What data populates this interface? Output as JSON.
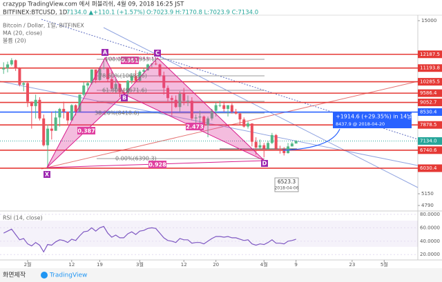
{
  "header": {
    "line1": "crazypp TradingView.com 에서 퍼블리쉬, 4월 09, 2018 16:25 JST",
    "symbol": "BITFINEX:BTCUSD, 1D",
    "change": "7134.0 ▲+110.1 (+1.57%)",
    "ohlc": "O:7023.9 H:7170.8 L:7023.9 C:7134.0"
  },
  "chart_data": {
    "type": "candlestick",
    "legend": [
      "Bitcoin / Dollar, 1일, BITFINEX",
      "MA (20, close)",
      "볼륨 (20)"
    ],
    "x": [
      26,
      27,
      28,
      29,
      30,
      31,
      32,
      33,
      34,
      35,
      36,
      37,
      38,
      39,
      40,
      41,
      42,
      43,
      44,
      45,
      46,
      47,
      48,
      49,
      50,
      51,
      52,
      53,
      54,
      55,
      56,
      57,
      58,
      59,
      60,
      61,
      62,
      63,
      64,
      65,
      66,
      67,
      68,
      69,
      70,
      71,
      72,
      73,
      74,
      75,
      76,
      77,
      78,
      79,
      80,
      81,
      82,
      83,
      84,
      85,
      86,
      87,
      88,
      89,
      90,
      91,
      92,
      93,
      94,
      95,
      96,
      97,
      98,
      99
    ],
    "open": [
      11100,
      11200,
      11450,
      11750,
      11200,
      10100,
      10200,
      9100,
      8850,
      9200,
      8200,
      6950,
      7700,
      7600,
      8250,
      8700,
      8550,
      8100,
      8900,
      8550,
      9500,
      10050,
      10200,
      11100,
      10400,
      11150,
      11200,
      10450,
      9850,
      10150,
      9650,
      9600,
      10350,
      10650,
      10350,
      10950,
      11050,
      11450,
      11500,
      11450,
      10700,
      9900,
      9300,
      9200,
      8800,
      9550,
      9150,
      9150,
      8200,
      8250,
      8300,
      7850,
      8200,
      8600,
      8900,
      8900,
      8700,
      8900,
      8550,
      8450,
      8150,
      7800,
      7950,
      7100,
      6850,
      6950,
      6800,
      7050,
      7400,
      6800,
      6780,
      6620,
      6900,
      7023.9
    ],
    "high": [
      11600,
      11650,
      11900,
      11800,
      11250,
      10300,
      10250,
      9100,
      9500,
      9350,
      8400,
      7900,
      8550,
      8600,
      8750,
      9100,
      8550,
      8950,
      8950,
      9500,
      10250,
      10300,
      11100,
      11100,
      11300,
      11800,
      11250,
      10950,
      10450,
      10200,
      9900,
      10400,
      10850,
      11050,
      11050,
      11200,
      11500,
      11550,
      11700,
      11500,
      10950,
      10050,
      9450,
      9450,
      9700,
      9900,
      9450,
      9350,
      8400,
      8600,
      8350,
      8300,
      8700,
      9050,
      9150,
      9100,
      8900,
      9000,
      8700,
      8500,
      8250,
      8050,
      7950,
      7300,
      7200,
      7050,
      7150,
      7500,
      7450,
      6930,
      6870,
      7050,
      7100,
      7170.8
    ],
    "low": [
      10800,
      10900,
      11350,
      11000,
      10000,
      9700,
      8800,
      7700,
      8200,
      8100,
      6900,
      6000,
      7200,
      7600,
      7800,
      8200,
      7850,
      8100,
      8350,
      8550,
      9400,
      9700,
      10100,
      10200,
      10350,
      11100,
      10300,
      9750,
      9600,
      9350,
      9300,
      9400,
      10150,
      10300,
      10300,
      10800,
      11000,
      11250,
      11400,
      10600,
      9500,
      9100,
      8350,
      8750,
      8550,
      8900,
      8850,
      8100,
      7700,
      7900,
      7750,
      7300,
      8100,
      8300,
      8800,
      8550,
      8300,
      8450,
      8400,
      7900,
      7750,
      7700,
      6900,
      6550,
      6800,
      6450,
      6750,
      7000,
      6750,
      6600,
      6523.3,
      6600,
      6900,
      7023.9
    ],
    "close": [
      11200,
      11450,
      11750,
      11200,
      10100,
      10200,
      9100,
      8850,
      9200,
      8200,
      6950,
      7700,
      7600,
      8250,
      8700,
      8550,
      8100,
      8900,
      8550,
      9500,
      10050,
      10200,
      11100,
      10400,
      11150,
      11200,
      10450,
      9850,
      10150,
      9650,
      9600,
      10350,
      10650,
      10350,
      10950,
      11050,
      11450,
      11500,
      11450,
      10700,
      9900,
      9300,
      9200,
      8800,
      9550,
      9150,
      9150,
      8200,
      8250,
      8300,
      7850,
      8200,
      8600,
      8900,
      8900,
      8700,
      8900,
      8550,
      8450,
      8150,
      7800,
      7950,
      7100,
      6850,
      6950,
      6800,
      7050,
      7400,
      6800,
      6780,
      6620,
      6900,
      7023.9,
      7134
    ],
    "color_up": "#53b987",
    "color_down": "#eb4d5c",
    "log_scale": true,
    "ylim": [
      4650,
      15520
    ],
    "yticks": [
      15000,
      5150,
      4790
    ],
    "xlim": [
      25.1,
      129.4
    ],
    "xticks": [
      {
        "value": 32,
        "label": "2월"
      },
      {
        "value": 43,
        "label": "12"
      },
      {
        "value": 50,
        "label": "19"
      },
      {
        "value": 60,
        "label": "3월"
      },
      {
        "value": 71,
        "label": "12"
      },
      {
        "value": 79,
        "label": "20"
      },
      {
        "value": 91,
        "label": "4월"
      },
      {
        "value": 99,
        "label": "9"
      },
      {
        "value": 113,
        "label": "23"
      },
      {
        "value": 121,
        "label": "5월"
      }
    ],
    "levels": [
      {
        "value": 12187.5,
        "color": "#e53935"
      },
      {
        "value": 11193.8,
        "color": "#e53935"
      },
      {
        "value": 10285.5,
        "color": "#e53935"
      },
      {
        "value": 9586.4,
        "color": "#e53935"
      },
      {
        "value": 9052.7,
        "color": "#e53935"
      },
      {
        "value": 8530.4,
        "color": "#2962ff"
      },
      {
        "value": 7878.5,
        "color": "#e53935"
      },
      {
        "value": 7134,
        "label": "7134.0",
        "color": "#26a69a",
        "line_style": "dotted"
      },
      {
        "value": 6740.6,
        "color": "#e53935"
      },
      {
        "value": 6030.4,
        "color": "#e53935"
      }
    ],
    "pattern_points": [
      "X",
      "A",
      "B",
      "C",
      "D"
    ],
    "pattern_ratios": [
      "0.387",
      "0.951",
      "2.473",
      "0.928"
    ],
    "fib_labels": [
      "100.00%(11553.1)",
      "78.60%(10683.6)",
      "61.80%(9671.6)",
      "38.20%(8418.6)",
      "0.00%(6390.3)"
    ],
    "projection": {
      "line1": "+1914.6 (+29.35%) in 14날",
      "line2": "8437.9 @ 2018-04-20"
    },
    "low_label": {
      "price": "6523.3",
      "date": "2018-04-06"
    }
  },
  "rsi": {
    "title": "RSI (14, close)",
    "color": "#7e57c2",
    "values": [
      52,
      55,
      58,
      50,
      42,
      44,
      36,
      33,
      38,
      34,
      24,
      35,
      34,
      39,
      42,
      41,
      38,
      43,
      41,
      48,
      54,
      55,
      60,
      55,
      60,
      62,
      52,
      46,
      49,
      45,
      45,
      51,
      54,
      50,
      55,
      56,
      59,
      60,
      59,
      52,
      45,
      41,
      40,
      38,
      44,
      42,
      42,
      37,
      38,
      38,
      36,
      40,
      44,
      47,
      47,
      46,
      47,
      45,
      45,
      43,
      41,
      42,
      36,
      34,
      36,
      35,
      38,
      42,
      37,
      37,
      36,
      40,
      41,
      43
    ],
    "ylim": [
      12,
      83
    ],
    "yticks": [
      {
        "value": 80,
        "label": "80.0000"
      },
      {
        "value": 60,
        "label": "60.0000"
      },
      {
        "value": 40,
        "label": "40.0000"
      },
      {
        "value": 20,
        "label": "20.0000"
      }
    ]
  },
  "footer": {
    "left": "화면제작",
    "brand": "TradingView"
  }
}
